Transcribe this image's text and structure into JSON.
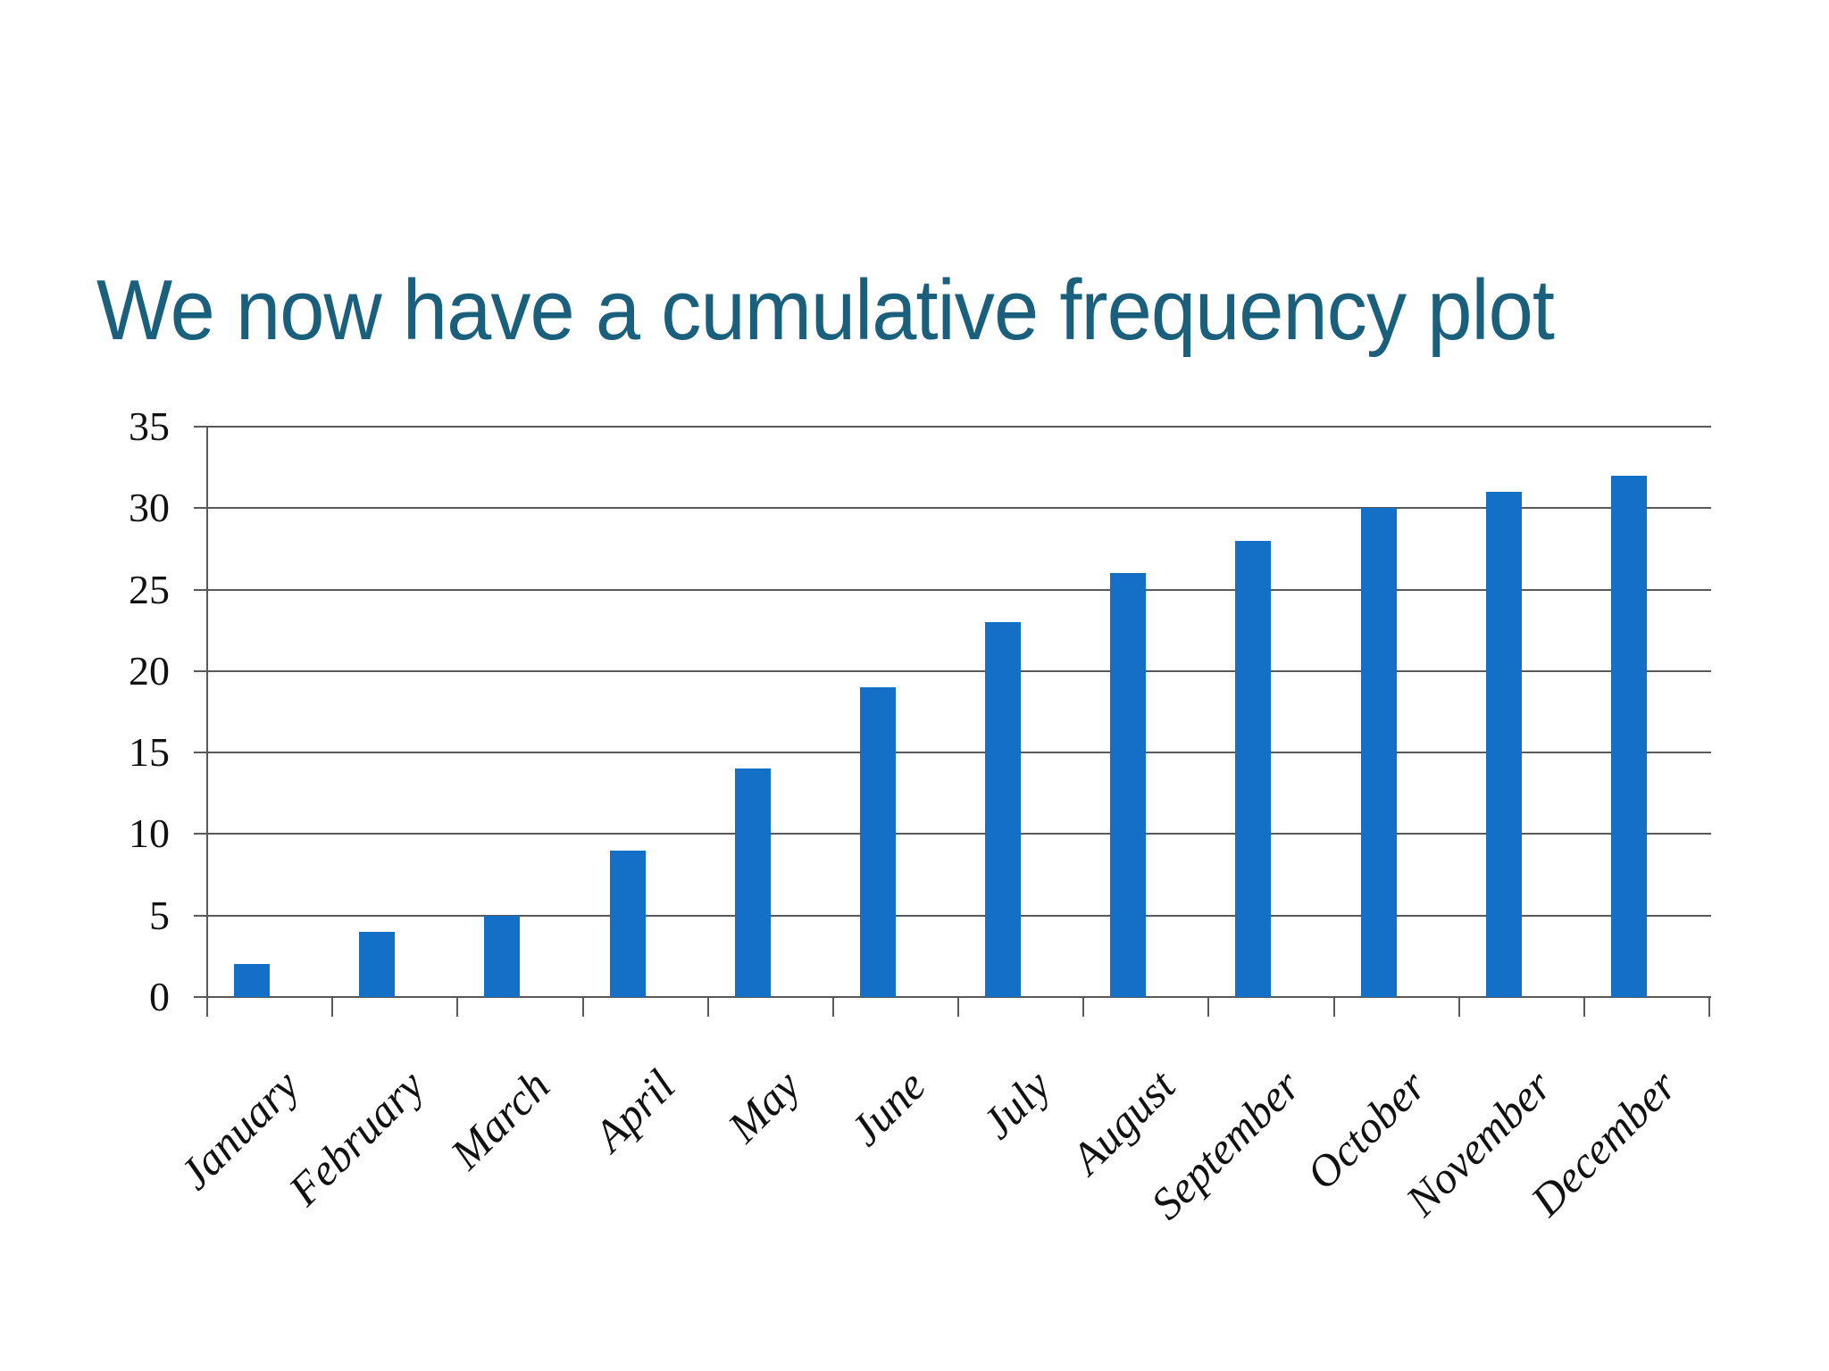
{
  "slide": {
    "title": "We now have a cumulative frequency plot"
  },
  "colors": {
    "title": "#1A607D",
    "bar": "#1470C6",
    "grid": "#595959",
    "label": "#111111",
    "background": "#FFFFFF"
  },
  "chart_data": {
    "type": "bar",
    "title": "We now have a cumulative frequency plot",
    "categories": [
      "January",
      "February",
      "March",
      "April",
      "May",
      "June",
      "July",
      "August",
      "September",
      "October",
      "November",
      "December"
    ],
    "values": [
      2,
      4,
      5,
      9,
      14,
      19,
      23,
      26,
      28,
      30,
      31,
      32
    ],
    "xlabel": "",
    "ylabel": "",
    "ylim": [
      0,
      35
    ],
    "ytick_step": 5,
    "yticks": [
      0,
      5,
      10,
      15,
      20,
      25,
      30,
      35
    ],
    "grid": true,
    "legend": false,
    "bar_color": "#1470C6",
    "x_tick_label_rotation_deg": 45
  }
}
